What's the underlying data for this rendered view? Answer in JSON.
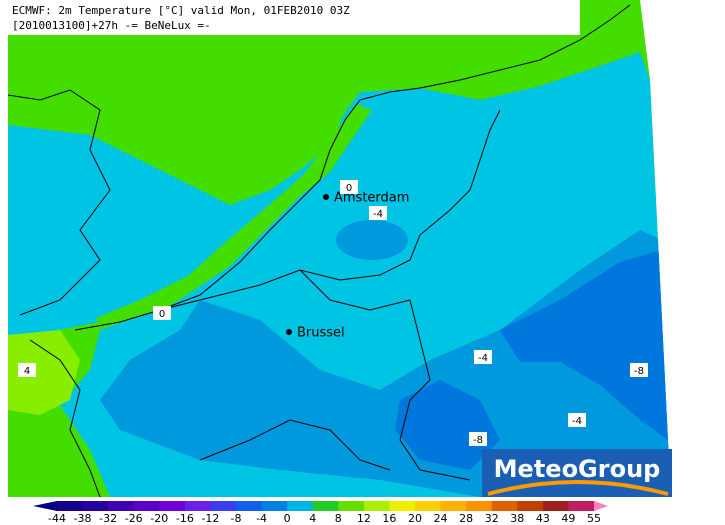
{
  "header": {
    "line1": "ECMWF: 2m Temperature [°C] valid Mon, 01FEB2010 03Z",
    "line2": "[2010013100]+27h -= BeNeLux =-"
  },
  "cities": [
    {
      "name": "Amsterdam"
    },
    {
      "name": "Brussel"
    }
  ],
  "contour_labels": [
    "0",
    "-4",
    "0",
    "4",
    "-4",
    "-8",
    "-4",
    "-8"
  ],
  "logo": "MeteoGroup",
  "legend": {
    "labels": [
      -44,
      -38,
      -32,
      -26,
      -20,
      -16,
      -12,
      -8,
      -4,
      0,
      4,
      8,
      12,
      16,
      20,
      24,
      28,
      32,
      38,
      43,
      49,
      55
    ],
    "colors": [
      "#000080",
      "#14008c",
      "#2800a0",
      "#4000b4",
      "#5a00c8",
      "#7000d8",
      "#6a20e6",
      "#3c3cf0",
      "#1060f0",
      "#0080e6",
      "#00b4e6",
      "#22cc22",
      "#66dd00",
      "#aaee00",
      "#eeee00",
      "#ffd000",
      "#ffb000",
      "#ff9000",
      "#e06000",
      "#c04000",
      "#a02020",
      "#c02060",
      "#e040a0",
      "#ff80c0"
    ]
  }
}
